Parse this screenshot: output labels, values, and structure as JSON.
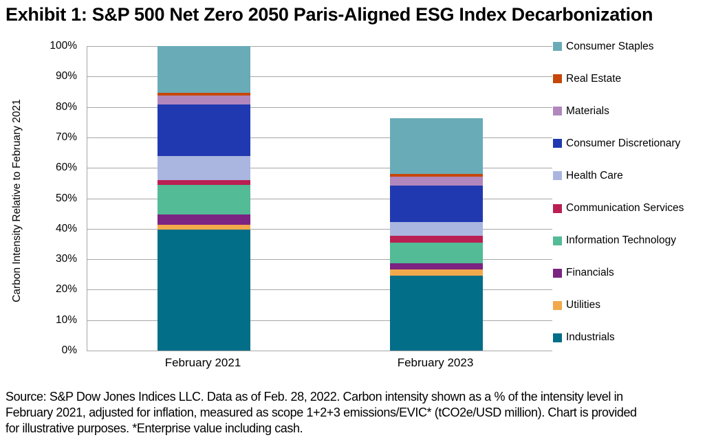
{
  "title": "Exhibit 1: S&P 500 Net Zero 2050 Paris-Aligned ESG Index Decarbonization",
  "footer": {
    "lines": [
      "Source: S&P Dow Jones Indices LLC. Data as of Feb. 28, 2022. Carbon intensity shown as a % of the intensity level in",
      "February 2021, adjusted for inflation, measured as scope 1+2+3 emissions/EVIC* (tCO2e/USD million). Chart is provided",
      "for illustrative purposes. *Enterprise value including cash."
    ]
  },
  "chart_data": {
    "type": "bar",
    "stacked": true,
    "title": "Exhibit 1: S&P 500 Net Zero 2050 Paris-Aligned ESG Index Decarbonization",
    "categories": [
      "February 2021",
      "February 2023"
    ],
    "xlabel": "",
    "ylabel": "Carbon Intensity Relative to February 2021",
    "ylim": [
      0,
      100
    ],
    "ytick_step": 10,
    "ytick_suffix": "%",
    "grid": true,
    "legend_position": "right",
    "totals_percent": [
      100.0,
      76.2
    ],
    "series_bottom_to_top": [
      {
        "name": "Industrials",
        "color": "#026E87",
        "values": [
          39.7,
          24.6
        ]
      },
      {
        "name": "Utilities",
        "color": "#F2A94C",
        "values": [
          1.7,
          2.1
        ]
      },
      {
        "name": "Financials",
        "color": "#7B2482",
        "values": [
          3.4,
          1.9
        ]
      },
      {
        "name": "Information Technology",
        "color": "#53BB96",
        "values": [
          9.6,
          6.8
        ]
      },
      {
        "name": "Communication Services",
        "color": "#BA1F54",
        "values": [
          1.6,
          2.3
        ]
      },
      {
        "name": "Health Care",
        "color": "#AAB6E0",
        "values": [
          7.8,
          4.5
        ]
      },
      {
        "name": "Consumer Discretionary",
        "color": "#2139B0",
        "values": [
          16.9,
          12.0
        ]
      },
      {
        "name": "Materials",
        "color": "#B287BD",
        "values": [
          3.1,
          2.8
        ]
      },
      {
        "name": "Real Estate",
        "color": "#C6470A",
        "values": [
          0.9,
          1.0
        ]
      },
      {
        "name": "Consumer Staples",
        "color": "#6AABB8",
        "values": [
          15.3,
          18.2
        ]
      }
    ]
  }
}
